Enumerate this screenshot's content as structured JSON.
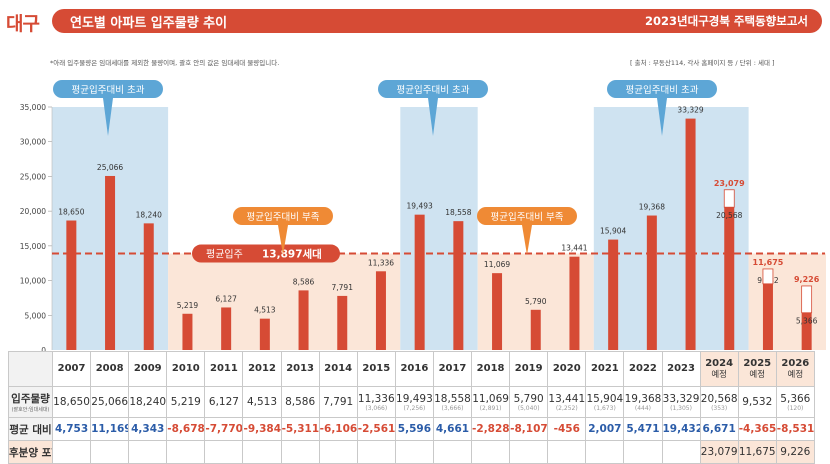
{
  "header": {
    "region": "대구",
    "title": "연도별 아파트 입주물량 추이",
    "report_year": "2023년",
    "report_name": "대구경북 주택동향보고서"
  },
  "note": "*아래 입주물량은 임대세대를 제외한 물량이며, 괄호 안의 값은 임대세대 물량입니다.",
  "source": "[ 출처 : 부동산114, 각사 홈페이지 등 / 단위 : 세대 ]",
  "colors": {
    "bar": "#d64b35",
    "over": "#cfe3f1",
    "under": "#fbe6d8",
    "positive": "#2b5ca8",
    "negative": "#d64b35"
  },
  "chart_data": {
    "type": "bar",
    "categories": [
      "2007",
      "2008",
      "2009",
      "2010",
      "2011",
      "2012",
      "2013",
      "2014",
      "2015",
      "2016",
      "2017",
      "2018",
      "2019",
      "2020",
      "2021",
      "2022",
      "2023",
      "2024",
      "2025",
      "2026"
    ],
    "values": [
      18650,
      25066,
      18240,
      5219,
      6127,
      4513,
      8586,
      7791,
      11336,
      19493,
      18558,
      11069,
      5790,
      13441,
      15904,
      19368,
      33329,
      20568,
      9532,
      5366
    ],
    "value_labels": [
      "18,650",
      "25,066",
      "18,240",
      "5,219",
      "6,127",
      "4,513",
      "8,586",
      "7,791",
      "11,336",
      "19,493",
      "18,558",
      "11,069",
      "5,790",
      "13,441",
      "15,904",
      "19,368",
      "33,329",
      "20,568",
      "9,532",
      "5,366"
    ],
    "with_presale": [
      null,
      null,
      null,
      null,
      null,
      null,
      null,
      null,
      null,
      null,
      null,
      null,
      null,
      null,
      null,
      null,
      null,
      23079,
      11675,
      9226
    ],
    "with_presale_labels": [
      "23,079",
      "11,675",
      "9,226"
    ],
    "average": 13897,
    "average_label_prefix": "평균입주",
    "average_label_value": "13,897세대",
    "ylim": [
      0,
      35000
    ],
    "yticks": [
      "35,000",
      "30,000",
      "25,000",
      "20,000",
      "15,000",
      "10,000",
      "5,000",
      "0"
    ],
    "callout_over": "평균입주대비 초과",
    "callout_under": "평균입주대비 부족"
  },
  "table": {
    "row_headers": [
      "입주물량",
      "평균 대비",
      "후분양 포함"
    ],
    "row_header_sub": "(괄호안:임대세대)",
    "years": [
      {
        "y": "2007",
        "s": ""
      },
      {
        "y": "2008",
        "s": ""
      },
      {
        "y": "2009",
        "s": ""
      },
      {
        "y": "2010",
        "s": ""
      },
      {
        "y": "2011",
        "s": ""
      },
      {
        "y": "2012",
        "s": ""
      },
      {
        "y": "2013",
        "s": ""
      },
      {
        "y": "2014",
        "s": ""
      },
      {
        "y": "2015",
        "s": ""
      },
      {
        "y": "2016",
        "s": ""
      },
      {
        "y": "2017",
        "s": ""
      },
      {
        "y": "2018",
        "s": ""
      },
      {
        "y": "2019",
        "s": ""
      },
      {
        "y": "2020",
        "s": ""
      },
      {
        "y": "2021",
        "s": ""
      },
      {
        "y": "2022",
        "s": ""
      },
      {
        "y": "2023",
        "s": ""
      },
      {
        "y": "2024",
        "s": "예정"
      },
      {
        "y": "2025",
        "s": "예정"
      },
      {
        "y": "2026",
        "s": "예정"
      }
    ],
    "supply": [
      {
        "v": "18,650",
        "r": ""
      },
      {
        "v": "25,066",
        "r": ""
      },
      {
        "v": "18,240",
        "r": ""
      },
      {
        "v": "5,219",
        "r": ""
      },
      {
        "v": "6,127",
        "r": ""
      },
      {
        "v": "4,513",
        "r": ""
      },
      {
        "v": "8,586",
        "r": ""
      },
      {
        "v": "7,791",
        "r": ""
      },
      {
        "v": "11,336",
        "r": "(3,066)"
      },
      {
        "v": "19,493",
        "r": "(7,256)"
      },
      {
        "v": "18,558",
        "r": "(3,666)"
      },
      {
        "v": "11,069",
        "r": "(2,891)"
      },
      {
        "v": "5,790",
        "r": "(5,040)"
      },
      {
        "v": "13,441",
        "r": "(2,252)"
      },
      {
        "v": "15,904",
        "r": "(1,673)"
      },
      {
        "v": "19,368",
        "r": "(444)"
      },
      {
        "v": "33,329",
        "r": "(1,305)"
      },
      {
        "v": "20,568",
        "r": "(353)"
      },
      {
        "v": "9,532",
        "r": ""
      },
      {
        "v": "5,366",
        "r": "(120)"
      }
    ],
    "vs_average": [
      "4,753",
      "11,169",
      "4,343",
      "-8,678",
      "-7,770",
      "-9,384",
      "-5,311",
      "-6,106",
      "-2,561",
      "5,596",
      "4,661",
      "-2,828",
      "-8,107",
      "-456",
      "2,007",
      "5,471",
      "19,432",
      "6,671",
      "-4,365",
      "-8,531"
    ],
    "presale_incl": [
      "",
      "",
      "",
      "",
      "",
      "",
      "",
      "",
      "",
      "",
      "",
      "",
      "",
      "",
      "",
      "",
      "",
      "23,079",
      "11,675",
      "9,226"
    ]
  }
}
